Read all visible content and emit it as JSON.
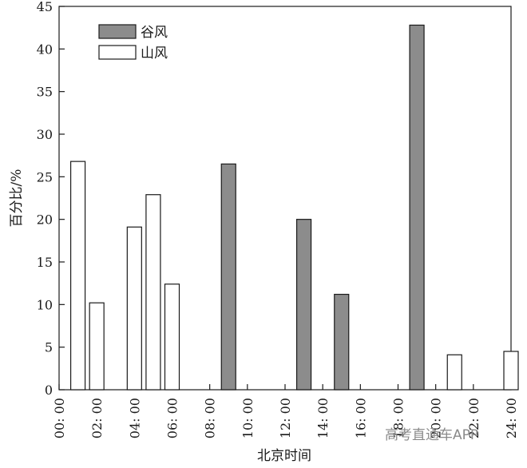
{
  "chart_data": {
    "type": "bar",
    "ylabel": "百分比/%",
    "xlabel": "北京时间",
    "ylim": [
      0,
      45
    ],
    "yticks": [
      0,
      5,
      10,
      15,
      20,
      25,
      30,
      35,
      40,
      45
    ],
    "xlim": [
      0,
      24
    ],
    "xticks": [
      {
        "hour": 0,
        "label": "00: 00"
      },
      {
        "hour": 2,
        "label": "02: 00"
      },
      {
        "hour": 4,
        "label": "04: 00"
      },
      {
        "hour": 6,
        "label": "06: 00"
      },
      {
        "hour": 8,
        "label": "08: 00"
      },
      {
        "hour": 10,
        "label": "10: 00"
      },
      {
        "hour": 12,
        "label": "12: 00"
      },
      {
        "hour": 14,
        "label": "14: 00"
      },
      {
        "hour": 16,
        "label": "16: 00"
      },
      {
        "hour": 18,
        "label": "18: 00"
      },
      {
        "hour": 20,
        "label": "20: 00"
      },
      {
        "hour": 22,
        "label": "22: 00"
      },
      {
        "hour": 24,
        "label": "24: 00"
      }
    ],
    "legend_position": "top-left",
    "series": [
      {
        "name": "谷风",
        "color": "#8c8c8c",
        "points": [
          {
            "hour": 9,
            "value": 26.5
          },
          {
            "hour": 13,
            "value": 20.0
          },
          {
            "hour": 15,
            "value": 11.2
          },
          {
            "hour": 19,
            "value": 42.8
          }
        ]
      },
      {
        "name": "山风",
        "color": "#ffffff",
        "points": [
          {
            "hour": 1,
            "value": 26.8
          },
          {
            "hour": 2,
            "value": 10.2
          },
          {
            "hour": 4,
            "value": 19.1
          },
          {
            "hour": 5,
            "value": 22.9
          },
          {
            "hour": 6,
            "value": 12.4
          },
          {
            "hour": 21,
            "value": 4.1
          },
          {
            "hour": 24,
            "value": 4.5
          }
        ]
      }
    ]
  },
  "watermark": "高考直通车APP"
}
